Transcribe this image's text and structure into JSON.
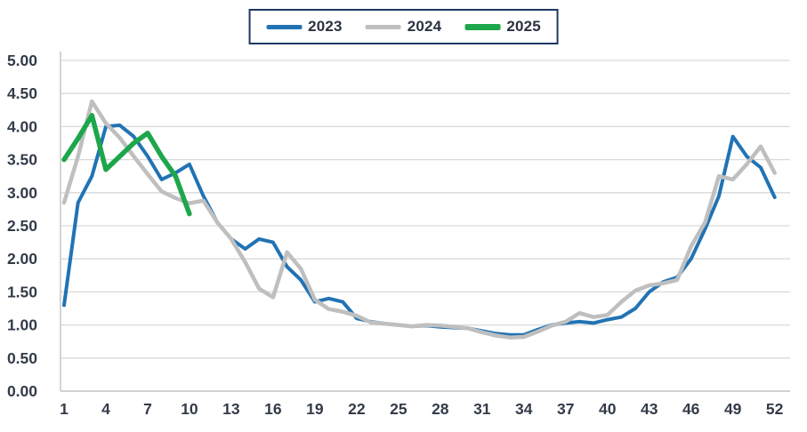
{
  "chart": {
    "legend_items": [
      {
        "label": "2023",
        "color": "#2173B4",
        "swatch_height": 5
      },
      {
        "label": "2024",
        "color": "#BFBFBF",
        "swatch_height": 5
      },
      {
        "label": "2025",
        "color": "#1EA64B",
        "swatch_height": 7
      }
    ],
    "colors": {
      "gridline": "#D9D9D9",
      "axis": "#C2C2C2",
      "tick_text": "#333B49",
      "legend_border": "#1F3864"
    }
  },
  "chart_data": {
    "type": "line",
    "title": "",
    "xlabel": "",
    "ylabel": "",
    "x": [
      1,
      2,
      3,
      4,
      5,
      6,
      7,
      8,
      9,
      10,
      11,
      12,
      13,
      14,
      15,
      16,
      17,
      18,
      19,
      20,
      21,
      22,
      23,
      24,
      25,
      26,
      27,
      28,
      29,
      30,
      31,
      32,
      33,
      34,
      35,
      36,
      37,
      38,
      39,
      40,
      41,
      42,
      43,
      44,
      45,
      46,
      47,
      48,
      49,
      50,
      51,
      52
    ],
    "x_tick_labels": [
      "1",
      "4",
      "7",
      "10",
      "13",
      "16",
      "19",
      "22",
      "25",
      "28",
      "31",
      "34",
      "37",
      "40",
      "43",
      "46",
      "49",
      "52"
    ],
    "y_tick_labels": [
      "0.00",
      "0.50",
      "1.00",
      "1.50",
      "2.00",
      "2.50",
      "3.00",
      "3.50",
      "4.00",
      "4.50",
      "5.00"
    ],
    "ylim": [
      0,
      5
    ],
    "ytick_step": 0.5,
    "grid": true,
    "legend_position": "top-center",
    "series": [
      {
        "name": "2023",
        "color": "#2173B4",
        "width": 4,
        "values": [
          1.3,
          2.85,
          3.25,
          4.0,
          4.02,
          3.85,
          3.55,
          3.2,
          3.3,
          3.43,
          2.95,
          2.55,
          2.3,
          2.15,
          2.3,
          2.25,
          1.88,
          1.68,
          1.35,
          1.4,
          1.35,
          1.1,
          1.05,
          1.02,
          1.0,
          0.98,
          0.99,
          0.97,
          0.96,
          0.95,
          0.91,
          0.87,
          0.85,
          0.85,
          0.93,
          1.0,
          1.03,
          1.05,
          1.03,
          1.08,
          1.12,
          1.25,
          1.5,
          1.65,
          1.72,
          2.0,
          2.45,
          2.95,
          3.85,
          3.55,
          3.38,
          2.93
        ]
      },
      {
        "name": "2024",
        "color": "#BFBFBF",
        "width": 4.5,
        "values": [
          2.85,
          3.55,
          4.38,
          4.05,
          3.83,
          3.55,
          3.28,
          3.02,
          2.92,
          2.84,
          2.88,
          2.55,
          2.3,
          1.95,
          1.55,
          1.42,
          2.1,
          1.85,
          1.38,
          1.24,
          1.2,
          1.14,
          1.04,
          1.02,
          1.0,
          0.98,
          1.0,
          0.99,
          0.97,
          0.95,
          0.89,
          0.84,
          0.81,
          0.82,
          0.9,
          0.99,
          1.05,
          1.18,
          1.12,
          1.15,
          1.35,
          1.52,
          1.6,
          1.63,
          1.68,
          2.19,
          2.55,
          3.25,
          3.2,
          3.43,
          3.7,
          3.3
        ]
      },
      {
        "name": "2025",
        "color": "#1EA64B",
        "width": 5.5,
        "values": [
          3.5,
          3.82,
          4.17,
          3.35,
          3.55,
          3.75,
          3.9,
          3.55,
          3.25,
          2.68
        ]
      }
    ]
  }
}
